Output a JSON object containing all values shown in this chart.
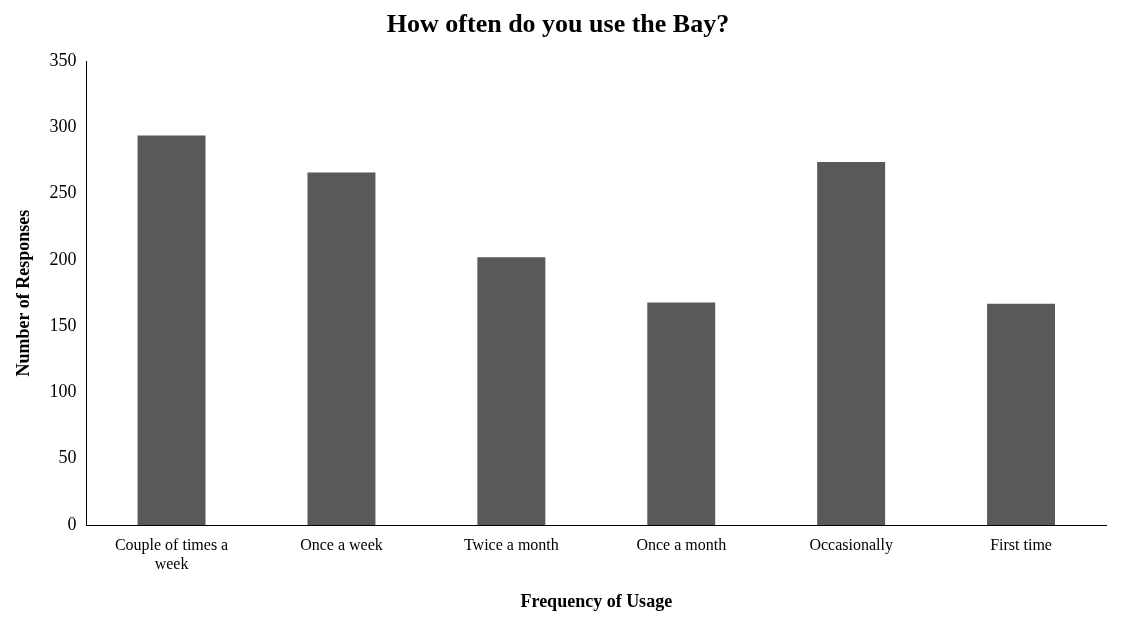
{
  "chart_data": {
    "type": "bar",
    "title": "How often do you use the Bay?",
    "xlabel": "Frequency of Usage",
    "ylabel": "Number of Responses",
    "categories": [
      "Couple of times a week",
      "Once a week",
      "Twice a month",
      "Once a month",
      "Occasionally",
      "First time"
    ],
    "values": [
      294,
      266,
      202,
      168,
      274,
      167
    ],
    "color": "#595959",
    "ylim": [
      0,
      350
    ],
    "yticks": [
      0,
      50,
      100,
      150,
      200,
      250,
      300,
      350
    ],
    "grid": false,
    "legend": false
  }
}
